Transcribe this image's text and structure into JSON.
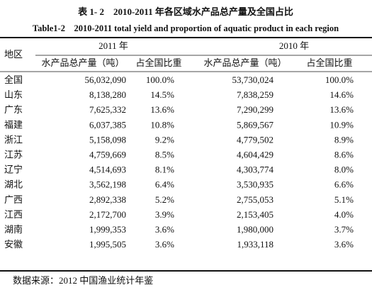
{
  "title": "表 1- 2　2010-2011 年各区域水产品总产量及全国占比",
  "subtitle": "Table1-2　2010-2011 total yield and proportion of aquatic product in each region",
  "table": {
    "region_header": "地区",
    "years": [
      "2011 年",
      "2010 年"
    ],
    "columns": [
      "水产品总产量（吨）",
      "占全国比重",
      "水产品总产量（吨）",
      "占全国比重"
    ],
    "rows": [
      [
        "全国",
        "56,032,090",
        "100.0%",
        "53,730,024",
        "100.0%"
      ],
      [
        "山东",
        "8,138,280",
        "14.5%",
        "7,838,259",
        "14.6%"
      ],
      [
        "广东",
        "7,625,332",
        "13.6%",
        "7,290,299",
        "13.6%"
      ],
      [
        "福建",
        "6,037,385",
        "10.8%",
        "5,869,567",
        "10.9%"
      ],
      [
        "浙江",
        "5,158,098",
        "9.2%",
        "4,779,502",
        "8.9%"
      ],
      [
        "江苏",
        "4,759,669",
        "8.5%",
        "4,604,429",
        "8.6%"
      ],
      [
        "辽宁",
        "4,514,693",
        "8.1%",
        "4,303,774",
        "8.0%"
      ],
      [
        "湖北",
        "3,562,198",
        "6.4%",
        "3,530,935",
        "6.6%"
      ],
      [
        "广西",
        "2,892,338",
        "5.2%",
        "2,755,053",
        "5.1%"
      ],
      [
        "江西",
        "2,172,700",
        "3.9%",
        "2,153,405",
        "4.0%"
      ],
      [
        "湖南",
        "1,999,353",
        "3.6%",
        "1,980,000",
        "3.7%"
      ],
      [
        "安徽",
        "1,995,505",
        "3.6%",
        "1,933,118",
        "3.6%"
      ]
    ]
  },
  "source": "数据来源：2012 中国渔业统计年鉴"
}
